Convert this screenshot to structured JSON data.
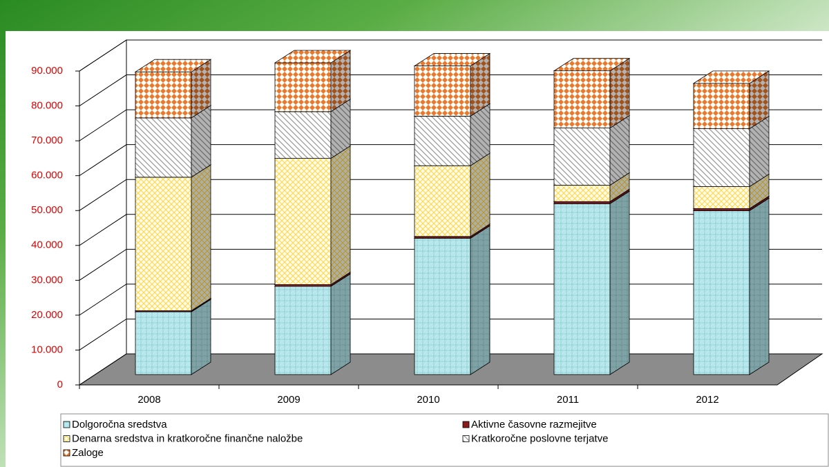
{
  "chart_data": {
    "type": "bar3d_stacked",
    "categories": [
      "2008",
      "2009",
      "2010",
      "2011",
      "2012"
    ],
    "series": [
      {
        "name": "Dolgoročna sredstva",
        "color": "#b8e8ec",
        "values": [
          18000,
          25300,
          39100,
          49000,
          47000
        ]
      },
      {
        "name": "Aktivne časovne razmejitve",
        "color": "#8b1a1a",
        "values": [
          300,
          500,
          500,
          600,
          600
        ]
      },
      {
        "name": "Denarna sredstva in  kratkoročne finančne naložbe",
        "color": "#ffd84a",
        "values": [
          38300,
          36200,
          20300,
          4700,
          6300
        ]
      },
      {
        "name": "Kratkoročne poslovne terjatve",
        "color": "#9a9a9a",
        "values": [
          17000,
          13400,
          14200,
          16400,
          16600
        ]
      },
      {
        "name": "Zaloge",
        "color": "#e8782a",
        "values": [
          13200,
          14000,
          14400,
          16400,
          13000
        ]
      }
    ],
    "ylim": [
      0,
      90000
    ],
    "yticks": [
      0,
      {
        "value": 10000,
        "label": "10.000"
      },
      {
        "value": 20000,
        "label": "20.000"
      },
      {
        "value": 30000,
        "label": "30.000"
      },
      {
        "value": 40000,
        "label": "40.000"
      },
      {
        "value": 50000,
        "label": "50.000"
      },
      {
        "value": 60000,
        "label": "60.000"
      },
      {
        "value": 70000,
        "label": "70.000"
      },
      {
        "value": 80000,
        "label": "80.000"
      },
      {
        "value": 90000,
        "label": "90.000"
      }
    ],
    "grid": true,
    "legend": "bottom"
  }
}
